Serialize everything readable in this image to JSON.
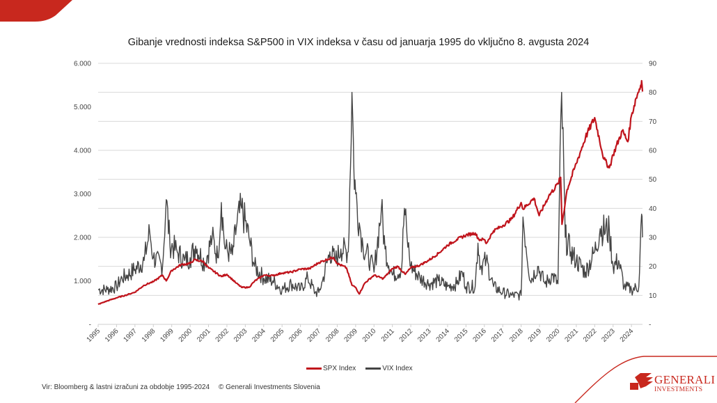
{
  "header": {
    "title": "Gibanje vrednosti indeksa S&P500 in VIX indeksa v času od januarja 1995 do vključno 8. avgusta 2024"
  },
  "footer": {
    "source": "Vir: Bloomberg & lastni izračuni za obdobje 1995-2024",
    "copyright": "© Generali Investments Slovenia"
  },
  "logo": {
    "main": "GENERALI",
    "sub": "INVESTMENTS",
    "icon": "winged-lion-icon"
  },
  "colors": {
    "brand_red": "#c8281e",
    "spx": "#c0141c",
    "vix": "#444444",
    "grid": "#d9d9d9"
  },
  "chart_data": {
    "type": "line",
    "title": "Gibanje vrednosti indeksa S&P500 in VIX indeksa v času od januarja 1995 do vključno 8. avgusta 2024",
    "xlabel": "",
    "ylabel_left": "SPX Index",
    "ylabel_right": "VIX Index",
    "x_ticks": [
      "1995",
      "1996",
      "1997",
      "1998",
      "1999",
      "2000",
      "2001",
      "2002",
      "2003",
      "2004",
      "2005",
      "2006",
      "2007",
      "2008",
      "2009",
      "2010",
      "2011",
      "2012",
      "2013",
      "2014",
      "2015",
      "2016",
      "2017",
      "2018",
      "2019",
      "2020",
      "2021",
      "2022",
      "2023",
      "2024"
    ],
    "xlim": [
      1995.0,
      2024.6
    ],
    "y_left": {
      "range": [
        0,
        6000
      ],
      "ticks": [
        "-",
        "1.000",
        "2.000",
        "3.000",
        "4.000",
        "5.000",
        "6.000"
      ],
      "tick_values": [
        0,
        1000,
        2000,
        3000,
        4000,
        5000,
        6000
      ]
    },
    "y_right": {
      "range": [
        0,
        90
      ],
      "ticks": [
        "-",
        "10",
        "20",
        "30",
        "40",
        "50",
        "60",
        "70",
        "80",
        "90"
      ],
      "tick_values": [
        0,
        10,
        20,
        30,
        40,
        50,
        60,
        70,
        80,
        90
      ]
    },
    "grid": true,
    "legend_position": "bottom",
    "legend": [
      "SPX Index",
      "VIX Index"
    ],
    "series": [
      {
        "name": "SPX Index",
        "axis": "left",
        "x": [
          1995.0,
          1995.5,
          1996.0,
          1996.5,
          1997.0,
          1997.5,
          1997.8,
          1998.0,
          1998.5,
          1998.7,
          1999.0,
          1999.5,
          2000.0,
          2000.2,
          2000.7,
          2001.0,
          2001.7,
          2002.0,
          2002.5,
          2002.8,
          2003.2,
          2003.5,
          2004.0,
          2004.5,
          2005.0,
          2005.5,
          2006.0,
          2006.5,
          2007.0,
          2007.5,
          2007.8,
          2008.0,
          2008.5,
          2008.8,
          2009.0,
          2009.2,
          2009.5,
          2010.0,
          2010.5,
          2011.0,
          2011.3,
          2011.7,
          2012.0,
          2012.5,
          2013.0,
          2013.5,
          2014.0,
          2014.5,
          2015.0,
          2015.5,
          2015.7,
          2016.0,
          2016.1,
          2016.5,
          2017.0,
          2017.5,
          2018.0,
          2018.1,
          2018.7,
          2018.98,
          2019.5,
          2020.0,
          2020.15,
          2020.22,
          2020.5,
          2021.0,
          2021.5,
          2022.0,
          2022.5,
          2022.8,
          2023.0,
          2023.5,
          2023.8,
          2024.0,
          2024.25,
          2024.5,
          2024.55,
          2024.6
        ],
        "values": [
          460,
          540,
          610,
          670,
          740,
          900,
          950,
          980,
          1130,
          1000,
          1240,
          1370,
          1400,
          1480,
          1450,
          1300,
          1100,
          1150,
          950,
          850,
          850,
          990,
          1130,
          1120,
          1180,
          1200,
          1270,
          1280,
          1420,
          1500,
          1540,
          1400,
          1300,
          900,
          850,
          700,
          950,
          1130,
          1050,
          1280,
          1330,
          1150,
          1300,
          1360,
          1480,
          1630,
          1820,
          1950,
          2050,
          2100,
          1950,
          1950,
          1860,
          2150,
          2270,
          2430,
          2800,
          2650,
          2900,
          2500,
          2950,
          3230,
          3380,
          2300,
          3100,
          3700,
          4300,
          4750,
          3800,
          3600,
          3900,
          4450,
          4200,
          4800,
          5200,
          5500,
          5600,
          5350
        ]
      },
      {
        "name": "VIX Index",
        "axis": "right",
        "x": [
          1995.0,
          1995.5,
          1996.0,
          1996.3,
          1996.6,
          1997.0,
          1997.5,
          1997.8,
          1998.0,
          1998.5,
          1998.7,
          1998.9,
          1999.3,
          1999.7,
          2000.0,
          2000.3,
          2000.8,
          2001.2,
          2001.5,
          2001.7,
          2001.9,
          2002.3,
          2002.55,
          2002.8,
          2003.2,
          2003.5,
          2004.0,
          2004.5,
          2005.0,
          2005.5,
          2006.0,
          2006.4,
          2006.8,
          2007.0,
          2007.2,
          2007.6,
          2007.9,
          2008.2,
          2008.6,
          2008.8,
          2008.85,
          2008.9,
          2009.0,
          2009.2,
          2009.4,
          2009.8,
          2010.0,
          2010.4,
          2010.6,
          2011.0,
          2011.5,
          2011.65,
          2011.8,
          2012.0,
          2012.5,
          2013.0,
          2013.5,
          2014.0,
          2014.5,
          2014.8,
          2015.0,
          2015.5,
          2015.65,
          2015.8,
          2016.1,
          2016.5,
          2017.0,
          2017.5,
          2018.0,
          2018.1,
          2018.5,
          2018.9,
          2019.3,
          2019.7,
          2020.0,
          2020.2,
          2020.4,
          2020.7,
          2021.0,
          2021.5,
          2022.0,
          2022.3,
          2022.8,
          2023.0,
          2023.3,
          2023.6,
          2024.0,
          2024.4,
          2024.55,
          2024.6
        ],
        "values": [
          12,
          12,
          13,
          16,
          17,
          19,
          22,
          32,
          23,
          20,
          43,
          28,
          25,
          22,
          23,
          27,
          21,
          30,
          23,
          42,
          26,
          24,
          35,
          40,
          30,
          20,
          16,
          15,
          12,
          14,
          12,
          16,
          11,
          11,
          15,
          25,
          22,
          26,
          25,
          80,
          70,
          55,
          45,
          35,
          27,
          22,
          18,
          40,
          26,
          17,
          19,
          40,
          30,
          20,
          16,
          14,
          15,
          13,
          14,
          18,
          13,
          13,
          28,
          20,
          22,
          13,
          11,
          10,
          10,
          37,
          15,
          20,
          14,
          17,
          14,
          80,
          30,
          25,
          22,
          18,
          25,
          33,
          32,
          20,
          22,
          13,
          12,
          13,
          38,
          30
        ]
      }
    ]
  }
}
